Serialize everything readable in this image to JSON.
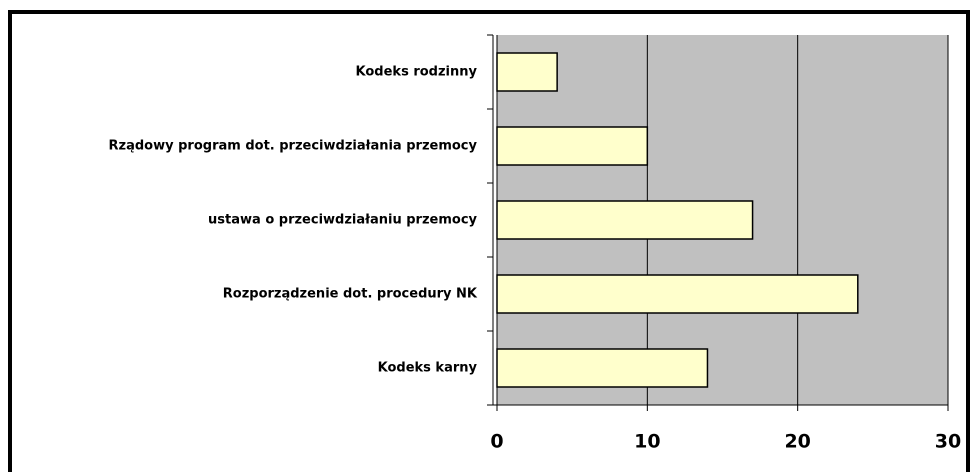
{
  "chart_data": {
    "type": "bar",
    "categories": [
      "Kodeks rodzinny",
      "Rządowy program dot. przeciwdziałania przemocy",
      "ustawa o przeciwdziałaniu przemocy",
      "Rozporządzenie dot. procedury NK",
      "Kodeks karny"
    ],
    "values": [
      4,
      10,
      17,
      24,
      14
    ],
    "color": "#ffffcc",
    "xlim": [
      0,
      30
    ],
    "xticks": [
      0,
      10,
      20,
      30
    ],
    "grid": true
  }
}
